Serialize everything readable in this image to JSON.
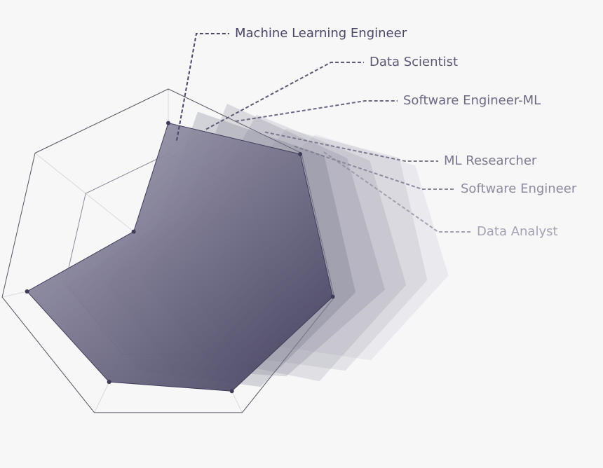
{
  "chart_data": {
    "type": "radar",
    "categories": [
      null,
      null,
      null,
      null,
      null,
      null,
      null
    ],
    "rlim": [
      0,
      100
    ],
    "rticks": [
      62,
      100
    ],
    "series": [
      {
        "name": "Machine Learning Engineer",
        "color": "#4a4766",
        "values": [
          80,
          99,
          99,
          86,
          80,
          85,
          26
        ]
      },
      {
        "name": "Data Scientist",
        "color": "#6a6780",
        "values": [
          85,
          95,
          95,
          85,
          75,
          80,
          30
        ]
      },
      {
        "name": "Software Engineer-ML",
        "color": "#7d7a90",
        "values": [
          88,
          90,
          95,
          80,
          75,
          75,
          35
        ]
      },
      {
        "name": "ML Researcher",
        "color": "#8e8c9e",
        "values": [
          80,
          85,
          90,
          85,
          70,
          70,
          40
        ]
      },
      {
        "name": "Software Engineer",
        "color": "#9d9bab",
        "values": [
          70,
          85,
          85,
          80,
          70,
          65,
          45
        ]
      },
      {
        "name": "Data Analyst",
        "color": "#b0aebb",
        "values": [
          65,
          75,
          80,
          75,
          65,
          60,
          50
        ]
      }
    ]
  }
}
